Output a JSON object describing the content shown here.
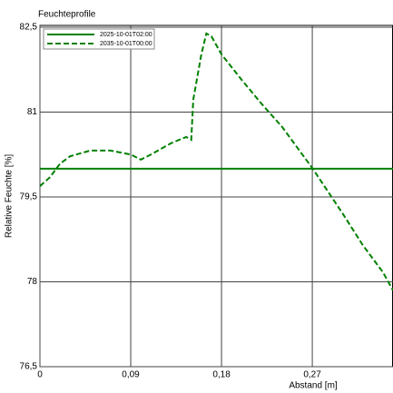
{
  "chart_data": {
    "type": "line",
    "title": "Feuchteprofile",
    "x_label": "Abstand [m]",
    "y_label": "Relative Feuchte [%]",
    "xlim": [
      0,
      0.35
    ],
    "ylim": [
      76.5,
      82.5
    ],
    "xticks": [
      0,
      {
        "value": 0.09,
        "label": "0,09"
      },
      {
        "value": 0.18,
        "label": "0,18"
      },
      {
        "value": 0.27,
        "label": "0,27"
      }
    ],
    "yticks": [
      {
        "value": 76.5,
        "label": "76,5"
      },
      78,
      {
        "value": 79.5,
        "label": "79,5"
      },
      81,
      {
        "value": 82.5,
        "label": "82,5"
      }
    ],
    "grid": true,
    "legend": "top-left",
    "series": [
      {
        "name": "2025-10-01T02:00",
        "color": "#008000",
        "dash": false,
        "x": [
          0,
          0.35
        ],
        "values": [
          80.0,
          80.0
        ]
      },
      {
        "name": "2035-10-01T00:00",
        "color": "#008000",
        "dash": true,
        "x": [
          0,
          0.01,
          0.02,
          0.03,
          0.05,
          0.07,
          0.09,
          0.1,
          0.11,
          0.13,
          0.145,
          0.15,
          0.152,
          0.16,
          0.165,
          0.17,
          0.18,
          0.2,
          0.22,
          0.24,
          0.27,
          0.3,
          0.32,
          0.34,
          0.35
        ],
        "values": [
          79.69,
          79.85,
          80.09,
          80.22,
          80.32,
          80.32,
          80.25,
          80.16,
          80.25,
          80.45,
          80.56,
          80.51,
          81.22,
          82.02,
          82.39,
          82.34,
          82.02,
          81.57,
          81.14,
          80.74,
          80.01,
          79.21,
          78.65,
          78.17,
          77.85
        ]
      }
    ]
  }
}
